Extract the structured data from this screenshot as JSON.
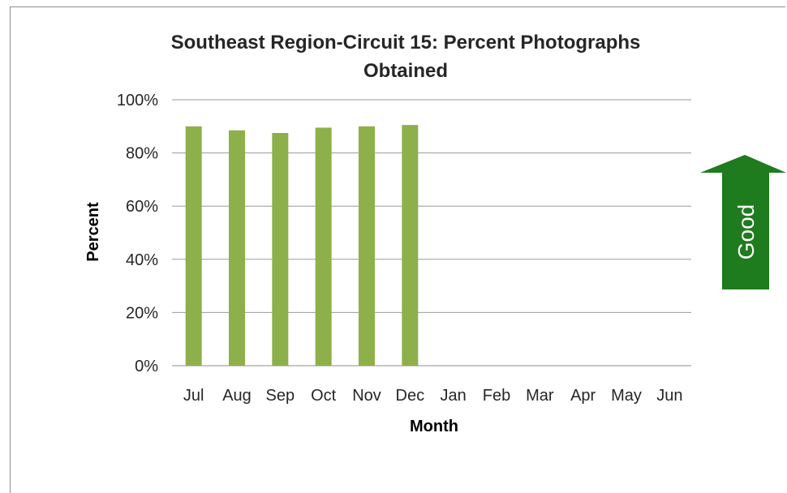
{
  "chart_data": {
    "type": "bar",
    "title_line1": "Southeast Region-Circuit 15: Percent Photographs",
    "title_line2": "Obtained",
    "xlabel": "Month",
    "ylabel": "Percent",
    "categories": [
      "Jul",
      "Aug",
      "Sep",
      "Oct",
      "Nov",
      "Dec",
      "Jan",
      "Feb",
      "Mar",
      "Apr",
      "May",
      "Jun"
    ],
    "values": [
      90,
      88.5,
      87.5,
      89.5,
      90,
      90.5,
      null,
      null,
      null,
      null,
      null,
      null
    ],
    "ylim": [
      0,
      100
    ],
    "yticks": [
      0,
      20,
      40,
      60,
      80,
      100
    ],
    "ytick_labels": [
      "0%",
      "20%",
      "40%",
      "60%",
      "80%",
      "100%"
    ],
    "grid": true,
    "bar_color": "#8db04a",
    "annotation": {
      "label": "Good",
      "direction": "up",
      "color": "#1e7b1e"
    }
  }
}
